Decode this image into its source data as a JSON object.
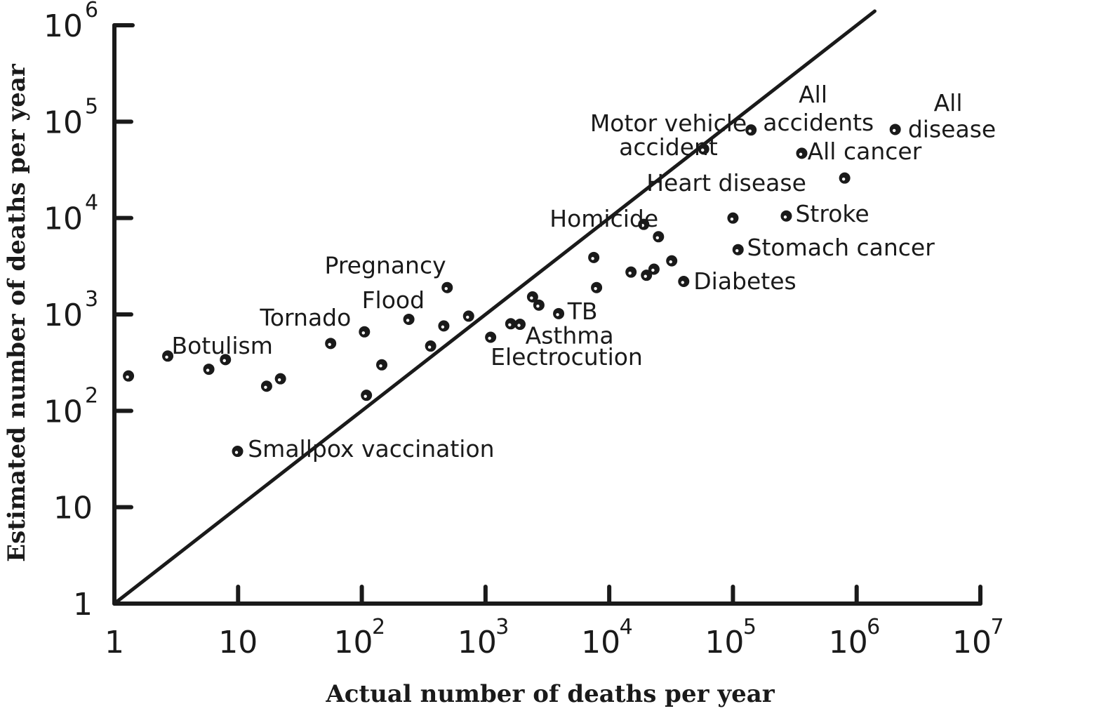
{
  "chart_data": {
    "type": "scatter",
    "xlabel": "Actual number of deaths per year",
    "ylabel": "Estimated number of deaths per year",
    "xscale": "log",
    "yscale": "log",
    "xlim": [
      1,
      10000000
    ],
    "ylim": [
      1,
      1000000
    ],
    "x_ticks": [
      {
        "base": "1",
        "exp": ""
      },
      {
        "base": "10",
        "exp": ""
      },
      {
        "base": "10",
        "exp": "2"
      },
      {
        "base": "10",
        "exp": "3"
      },
      {
        "base": "10",
        "exp": "4"
      },
      {
        "base": "10",
        "exp": "5"
      },
      {
        "base": "10",
        "exp": "6"
      },
      {
        "base": "10",
        "exp": "7"
      }
    ],
    "y_ticks": [
      {
        "base": "1",
        "exp": ""
      },
      {
        "base": "10",
        "exp": ""
      },
      {
        "base": "10",
        "exp": "2"
      },
      {
        "base": "10",
        "exp": "3"
      },
      {
        "base": "10",
        "exp": "4"
      },
      {
        "base": "10",
        "exp": "5"
      },
      {
        "base": "10",
        "exp": "6"
      }
    ],
    "reference_line": {
      "from": [
        1,
        1
      ],
      "to": [
        1400000,
        1400000
      ]
    },
    "points": [
      {
        "x": 1.3,
        "y": 230,
        "label": ""
      },
      {
        "x": 2.7,
        "y": 370,
        "label": "Botulism"
      },
      {
        "x": 5.8,
        "y": 270,
        "label": ""
      },
      {
        "x": 7.9,
        "y": 340,
        "label": ""
      },
      {
        "x": 9.9,
        "y": 38,
        "label": "Smallpox vaccination"
      },
      {
        "x": 17,
        "y": 180,
        "label": ""
      },
      {
        "x": 22,
        "y": 215,
        "label": ""
      },
      {
        "x": 56,
        "y": 500,
        "label": "Tornado"
      },
      {
        "x": 105,
        "y": 660,
        "label": "Flood"
      },
      {
        "x": 109,
        "y": 145,
        "label": ""
      },
      {
        "x": 145,
        "y": 300,
        "label": ""
      },
      {
        "x": 240,
        "y": 890,
        "label": ""
      },
      {
        "x": 360,
        "y": 470,
        "label": ""
      },
      {
        "x": 460,
        "y": 760,
        "label": ""
      },
      {
        "x": 490,
        "y": 1900,
        "label": "Pregnancy"
      },
      {
        "x": 730,
        "y": 960,
        "label": ""
      },
      {
        "x": 1100,
        "y": 580,
        "label": ""
      },
      {
        "x": 1600,
        "y": 800,
        "label": "Electrocution"
      },
      {
        "x": 1900,
        "y": 790,
        "label": "Asthma"
      },
      {
        "x": 2400,
        "y": 1520,
        "label": ""
      },
      {
        "x": 2700,
        "y": 1250,
        "label": ""
      },
      {
        "x": 3900,
        "y": 1020,
        "label": "TB"
      },
      {
        "x": 7500,
        "y": 3900,
        "label": ""
      },
      {
        "x": 7900,
        "y": 1900,
        "label": ""
      },
      {
        "x": 15000,
        "y": 2750,
        "label": ""
      },
      {
        "x": 19000,
        "y": 8600,
        "label": "Homicide"
      },
      {
        "x": 20000,
        "y": 2550,
        "label": ""
      },
      {
        "x": 23000,
        "y": 2950,
        "label": ""
      },
      {
        "x": 25000,
        "y": 6400,
        "label": ""
      },
      {
        "x": 32000,
        "y": 3600,
        "label": ""
      },
      {
        "x": 40000,
        "y": 2200,
        "label": "Diabetes"
      },
      {
        "x": 58000,
        "y": 52000,
        "label": "Motor vehicle accident"
      },
      {
        "x": 100000,
        "y": 10000,
        "label": "Heart disease"
      },
      {
        "x": 110000,
        "y": 4700,
        "label": "Stomach cancer"
      },
      {
        "x": 140000,
        "y": 82000,
        "label": "All accidents"
      },
      {
        "x": 270000,
        "y": 10500,
        "label": "Stroke"
      },
      {
        "x": 360000,
        "y": 47000,
        "label": "All cancer"
      },
      {
        "x": 800000,
        "y": 26000,
        "label": ""
      },
      {
        "x": 2050000,
        "y": 83000,
        "label": "All disease"
      }
    ],
    "annotations": [
      {
        "text": "Botulism",
        "x": 2.9,
        "y": 470,
        "anchor": "start"
      },
      {
        "text": "Tornado",
        "x": 15,
        "y": 920,
        "anchor": "start"
      },
      {
        "text": "Flood",
        "x": 100,
        "y": 1400,
        "anchor": "start"
      },
      {
        "text": "Pregnancy",
        "x": 50,
        "y": 3200,
        "anchor": "start"
      },
      {
        "text": "Smallpox vaccination",
        "x": 12,
        "y": 40,
        "anchor": "start"
      },
      {
        "text": "TB",
        "x": 4600,
        "y": 1070,
        "anchor": "start"
      },
      {
        "text": "Asthma",
        "x": 2100,
        "y": 600,
        "anchor": "start"
      },
      {
        "text": "Electrocution",
        "x": 1100,
        "y": 360,
        "anchor": "start"
      },
      {
        "text": "Homicide",
        "x": 3300,
        "y": 9800,
        "anchor": "start"
      },
      {
        "text": "Diabetes",
        "x": 48000,
        "y": 2200,
        "anchor": "start"
      },
      {
        "text": "Stomach cancer",
        "x": 130000,
        "y": 4900,
        "anchor": "start"
      },
      {
        "text": "Stroke",
        "x": 320000,
        "y": 11000,
        "anchor": "start"
      },
      {
        "text": "Heart disease",
        "x": 20000,
        "y": 23000,
        "anchor": "start"
      },
      {
        "text": "Motor vehicle",
        "x": 7000,
        "y": 96000,
        "anchor": "start"
      },
      {
        "text": "accident",
        "x": 12000,
        "y": 54000,
        "anchor": "start"
      },
      {
        "text": "All cancer",
        "x": 400000,
        "y": 49000,
        "anchor": "start"
      },
      {
        "text": "All",
        "x": 340000,
        "y": 190000,
        "anchor": "start"
      },
      {
        "text": "accidents",
        "x": 175000,
        "y": 97000,
        "anchor": "start"
      },
      {
        "text": "All",
        "x": 4200000,
        "y": 155000,
        "anchor": "start"
      },
      {
        "text": "disease",
        "x": 2600000,
        "y": 83000,
        "anchor": "start"
      }
    ],
    "grid": false,
    "legend": "none",
    "colors": {
      "ink": "#1a1a1a",
      "background": "#ffffff"
    }
  }
}
